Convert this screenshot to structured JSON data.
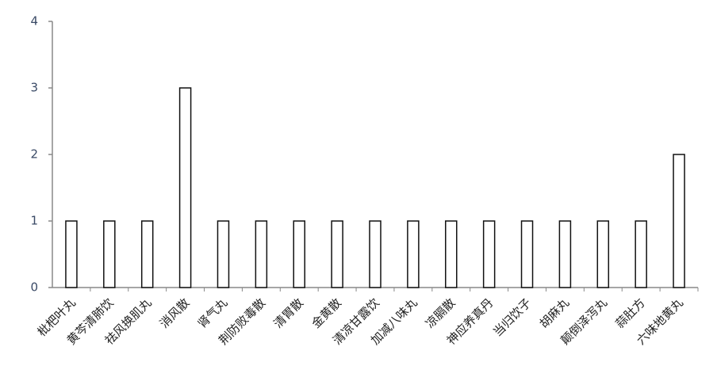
{
  "chart_data": {
    "type": "bar",
    "categories": [
      "枇杷叶丸",
      "黄芩清肺饮",
      "祛风换肌丸",
      "消风散",
      "肾气丸",
      "荆防败毒散",
      "清胃散",
      "金黄散",
      "清凉甘露饮",
      "加减八味丸",
      "凉膈散",
      "神应养真丹",
      "当归饮子",
      "胡麻丸",
      "颠倒泽泻丸",
      "蒜肚方",
      "六味地黄丸"
    ],
    "values": [
      1,
      1,
      1,
      3,
      1,
      1,
      1,
      1,
      1,
      1,
      1,
      1,
      1,
      1,
      1,
      1,
      2
    ],
    "color": "#ffffff",
    "ylim": [
      0,
      4
    ],
    "yticks": [
      0,
      1,
      2,
      3,
      4
    ],
    "grid": false
  }
}
